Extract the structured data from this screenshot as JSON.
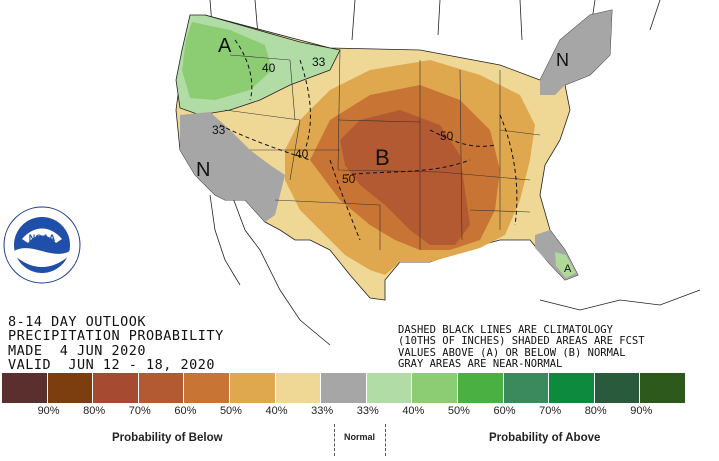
{
  "map": {
    "regions": [
      {
        "name": "pacific-northwest",
        "category": "A",
        "probability": "40%",
        "fill": "#90ce78"
      },
      {
        "name": "southwest",
        "category": "N",
        "fill": "#a6a6a6"
      },
      {
        "name": "new-england",
        "category": "N",
        "fill": "#a6a6a6"
      },
      {
        "name": "central-plains",
        "category": "B",
        "probability": "50-60%",
        "fill": "#c06a2a"
      },
      {
        "name": "south-florida",
        "category": "A",
        "probability": "33%",
        "fill": "#b0d898"
      }
    ],
    "labels": {
      "a_west": "A",
      "a_florida": "A",
      "n_southwest": "N",
      "n_northeast": "N",
      "b_center": "B",
      "c40_nw": "40",
      "c33_nw": "33",
      "c33_w": "33",
      "c40_w": "40",
      "c50_c": "50",
      "c50_e": "50"
    }
  },
  "title": {
    "line1": "8-14 DAY OUTLOOK",
    "line2": "PRECIPITATION PROBABILITY",
    "line3": "MADE  4 JUN 2020",
    "line4": "VALID  JUN 12 - 18, 2020"
  },
  "note": {
    "line1": "DASHED BLACK LINES ARE CLIMATOLOGY",
    "line2": "(10THS OF INCHES) SHADED AREAS ARE FCST",
    "line3": "VALUES ABOVE (A) OR BELOW (B) NORMAL",
    "line4": "GRAY AREAS ARE NEAR-NORMAL"
  },
  "logo": {
    "text": "NOAA",
    "ring_text": "NATIONAL OCEANIC AND ATMOSPHERIC ADMINISTRATION · U.S. DEPARTMENT OF COMMERCE"
  },
  "legend": {
    "colors": [
      "#5b2f2d",
      "#7d3e0f",
      "#a64a32",
      "#b35a32",
      "#c87434",
      "#dfa84e",
      "#efd796",
      "#a6a6a6",
      "#b2dca6",
      "#8ccc72",
      "#49b041",
      "#3a8a5e",
      "#0d8a3e",
      "#2a5a3c",
      "#2d5a1c"
    ],
    "tick_labels": [
      "90%",
      "80%",
      "70%",
      "60%",
      "50%",
      "40%",
      "33%",
      "33%",
      "40%",
      "50%",
      "60%",
      "70%",
      "80%",
      "90%"
    ],
    "below_label": "Probability of Below",
    "normal_label": "Normal",
    "above_label": "Probability of Above"
  }
}
